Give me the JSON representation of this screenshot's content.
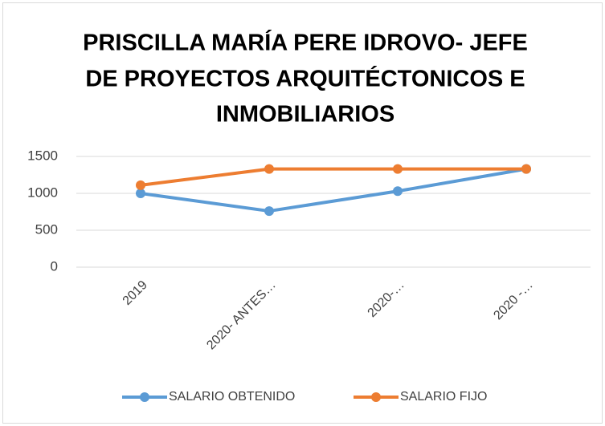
{
  "chart_data": {
    "type": "line",
    "title": [
      "PRISCILLA MARÍA PERE IDROVO- JEFE",
      "DE PROYECTOS ARQUITÉCTONICOS E",
      "INMOBILIARIOS"
    ],
    "categories": [
      "2019",
      "2020- ANTES…",
      "2020-…",
      "2020 -…"
    ],
    "series": [
      {
        "name": "SALARIO OBTENIDO",
        "color": "#5b9bd5",
        "values": [
          1000,
          760,
          1030,
          1330
        ]
      },
      {
        "name": "SALARIO FIJO",
        "color": "#ed7d31",
        "values": [
          1110,
          1330,
          1330,
          1330
        ]
      }
    ],
    "ylim": [
      0,
      1500
    ],
    "yticks": [
      0,
      500,
      1000,
      1500
    ],
    "grid": true,
    "legend": "bottom"
  }
}
